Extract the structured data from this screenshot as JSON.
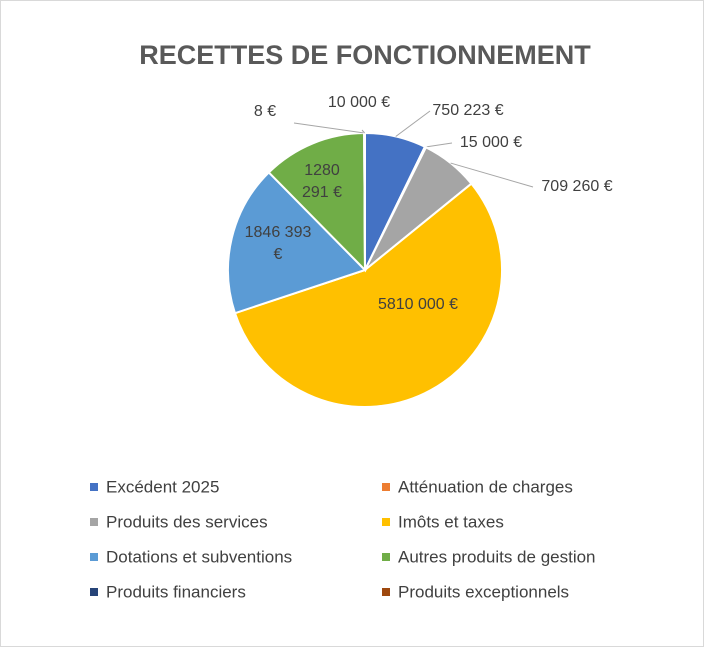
{
  "chart_data": {
    "type": "pie",
    "title": "RECETTES DE FONCTIONNEMENT",
    "categories": [
      "Excédent 2025",
      "Atténuation de charges",
      "Produits des services",
      "Imôts et taxes",
      "Dotations et subventions",
      "Autres produits de gestion",
      "Produits financiers",
      "Produits exceptionnels"
    ],
    "values": [
      750223,
      15000,
      709260,
      5810000,
      1846393,
      1280291,
      8,
      10000
    ],
    "value_labels": [
      "750 223 €",
      "15 000 €",
      "709 260 €",
      "5810 000 €",
      "1846 393 €",
      "1280 291 €",
      "8 €",
      "10 000 €"
    ],
    "colors": [
      "#4472c4",
      "#ed7d31",
      "#a5a5a5",
      "#ffc000",
      "#5b9bd5",
      "#70ad47",
      "#264478",
      "#9e480e"
    ],
    "legend": "bottom"
  }
}
